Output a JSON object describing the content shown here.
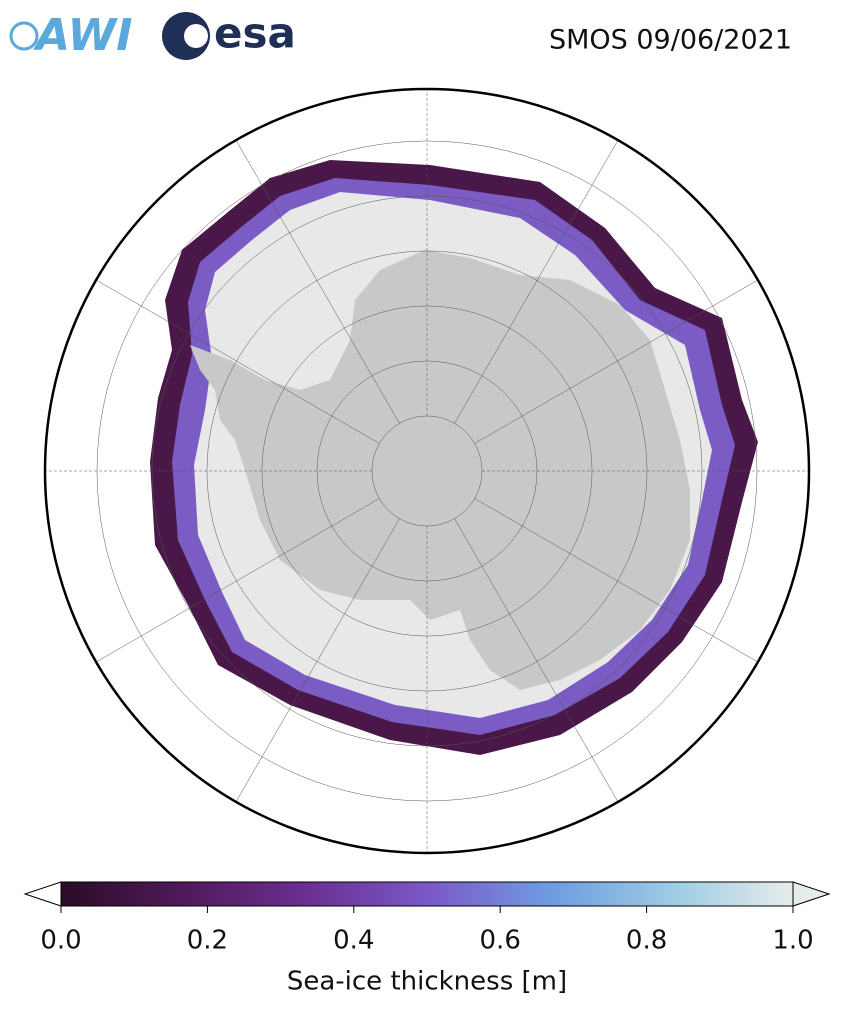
{
  "header": {
    "logos": [
      "AWI",
      "esa"
    ],
    "title": "SMOS 09/06/2021"
  },
  "colorbar": {
    "label": "Sea-ice thickness [m]",
    "lim": [
      0,
      1
    ],
    "ticks": [
      {
        "value": 0,
        "label": "0.0"
      },
      {
        "value": 0.2,
        "label": "0.2"
      },
      {
        "value": 0.4,
        "label": "0.4"
      },
      {
        "value": 0.6,
        "label": "0.6"
      },
      {
        "value": 0.8,
        "label": "0.8"
      },
      {
        "value": 1,
        "label": "1.0"
      }
    ],
    "colors": [
      "#2b0c26",
      "#4f1a5a",
      "#6a2f8f",
      "#7a58c8",
      "#6f9be0",
      "#9ccbe2",
      "#e6ecec"
    ]
  }
}
